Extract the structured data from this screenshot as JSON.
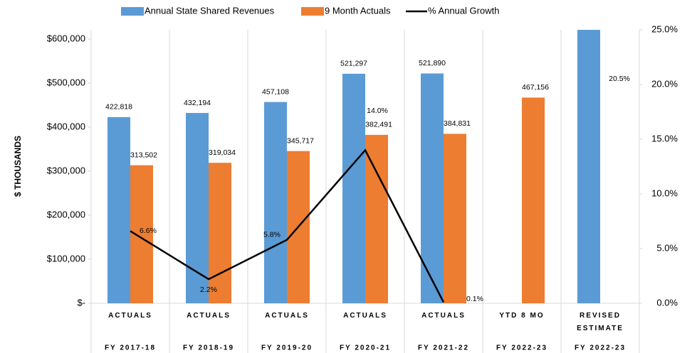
{
  "chart_data": {
    "type": "bar",
    "y_axis_label": "$ THOUSANDS",
    "categories": [
      "ACTUALS",
      "ACTUALS",
      "ACTUALS",
      "ACTUALS",
      "ACTUALS",
      "YTD 8 MO",
      "REVISED ESTIMATE"
    ],
    "fiscal_years": [
      "FY 2017-18",
      "FY 2018-19",
      "FY 2019-20",
      "FY 2020-21",
      "FY 2021-22",
      "FY 2022-23",
      "FY 2022-23"
    ],
    "series": [
      {
        "name": "Annual State Shared Revenues",
        "type": "bar",
        "color": "#5b9bd5",
        "values": [
          422818,
          432194,
          457108,
          521297,
          521890,
          null,
          628877
        ],
        "value_labels": [
          "422,818",
          "432,194",
          "457,108",
          "521,297",
          "521,890",
          null,
          null
        ]
      },
      {
        "name": "9 Month Actuals",
        "type": "bar",
        "color": "#ed7d31",
        "values": [
          313502,
          319034,
          345717,
          382491,
          384831,
          467156,
          null
        ],
        "value_labels": [
          "313,502",
          "319,034",
          "345,717",
          "382,491",
          "384,831",
          "467,156",
          null
        ]
      },
      {
        "name": "% Annual Growth",
        "type": "line",
        "color": "#000000",
        "axis": "y2",
        "values": [
          6.6,
          2.2,
          5.8,
          14.0,
          0.1,
          null,
          20.5
        ],
        "value_labels": [
          "6.6%",
          "2.2%",
          "5.8%",
          "14.0%",
          "0.1%",
          null,
          "20.5%"
        ]
      }
    ],
    "ylim": [
      0,
      621000
    ],
    "yticks": [
      {
        "value": 0,
        "label": "$-"
      },
      {
        "value": 100000,
        "label": "$100,000"
      },
      {
        "value": 200000,
        "label": "$200,000"
      },
      {
        "value": 300000,
        "label": "$300,000"
      },
      {
        "value": 400000,
        "label": "$400,000"
      },
      {
        "value": 500000,
        "label": "$500,000"
      },
      {
        "value": 600000,
        "label": "$600,000"
      }
    ],
    "y2lim": [
      0,
      25
    ],
    "y2ticks": [
      {
        "value": 0,
        "label": "0.0%"
      },
      {
        "value": 5,
        "label": "5.0%"
      },
      {
        "value": 10,
        "label": "10.0%"
      },
      {
        "value": 15,
        "label": "15.0%"
      },
      {
        "value": 20,
        "label": "20.0%"
      },
      {
        "value": 25,
        "label": "25.0%"
      }
    ],
    "legend": "top"
  }
}
